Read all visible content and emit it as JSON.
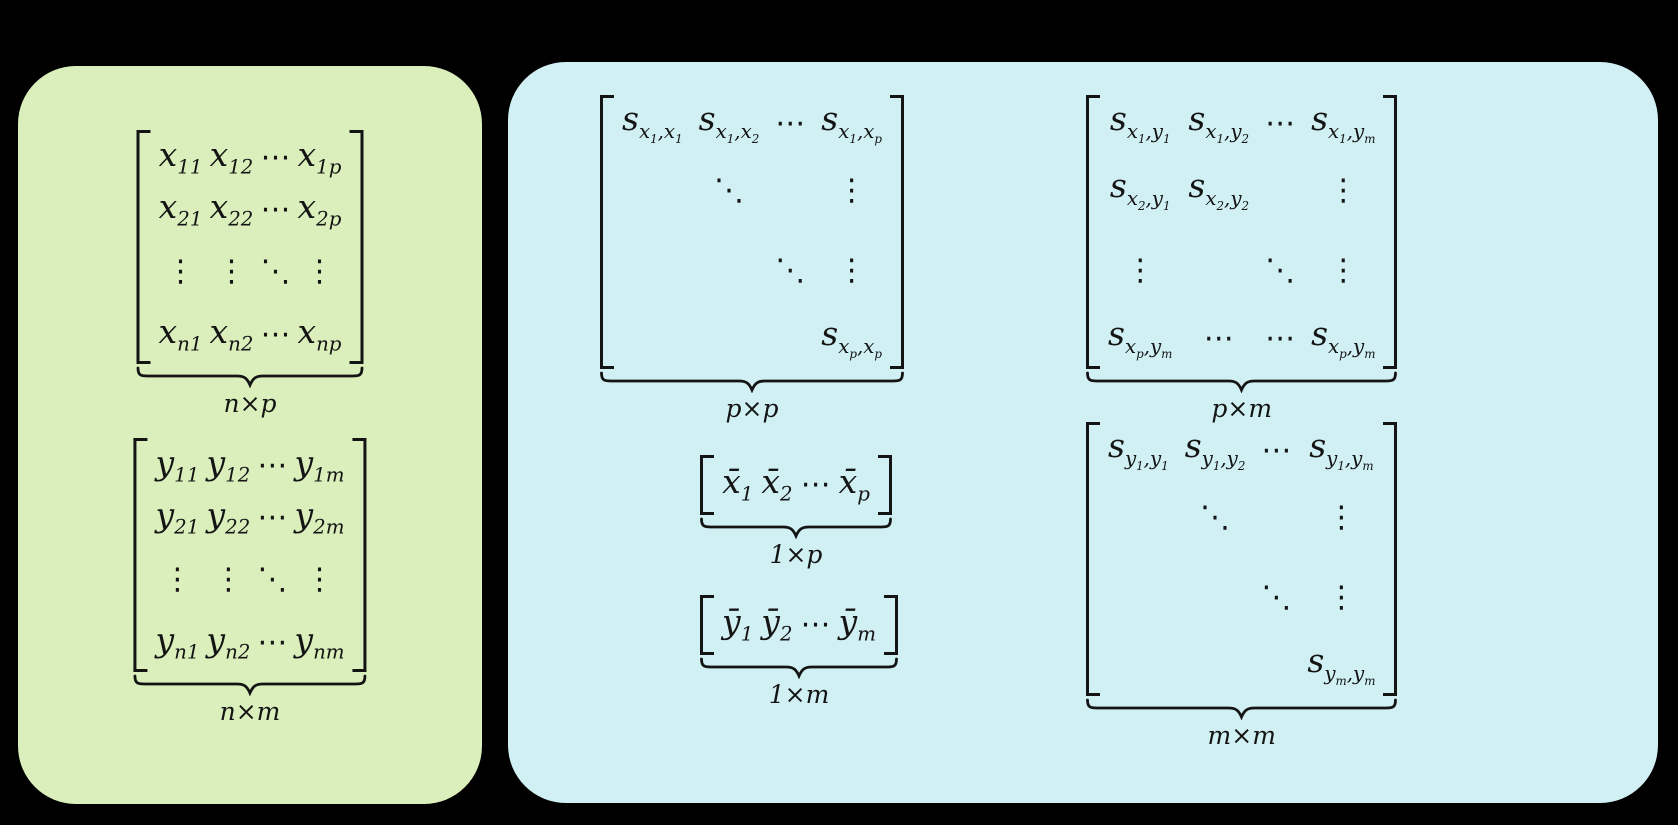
{
  "colors": {
    "background": "#000000",
    "data_panel_fill": "#daefbb",
    "stats_panel_fill": "#d1f0f4",
    "text": "#141414"
  },
  "green_panel": {
    "x_matrix": {
      "rows": [
        [
          "x_{11}",
          "x_{12}",
          "⋯",
          "x_{1p}"
        ],
        [
          "x_{21}",
          "x_{22}",
          "⋯",
          "x_{2p}"
        ],
        [
          "⋮",
          "⋮",
          "⋱",
          "⋮"
        ],
        [
          "x_{n1}",
          "x_{n2}",
          "⋯",
          "x_{np}"
        ]
      ],
      "dim_label": "n×p"
    },
    "y_matrix": {
      "rows": [
        [
          "y_{11}",
          "y_{12}",
          "⋯",
          "y_{1m}"
        ],
        [
          "y_{21}",
          "y_{22}",
          "⋯",
          "y_{2m}"
        ],
        [
          "⋮",
          "⋮",
          "⋱",
          "⋮"
        ],
        [
          "y_{n1}",
          "y_{n2}",
          "⋯",
          "y_{nm}"
        ]
      ],
      "dim_label": "n×m"
    }
  },
  "blue_panel": {
    "sxx_matrix": {
      "rows": [
        [
          "s_{x_1,x_1}",
          "s_{x_1,x_2}",
          "⋯",
          "s_{x_1,x_p}"
        ],
        [
          "",
          "⋱",
          "",
          "⋮"
        ],
        [
          "",
          "",
          "⋱",
          "⋮"
        ],
        [
          "",
          "",
          "",
          "s_{x_p,x_p}"
        ]
      ],
      "dim_label": "p×p"
    },
    "sxy_matrix": {
      "rows": [
        [
          "s_{x_1,y_1}",
          "s_{x_1,y_2}",
          "⋯",
          "s_{x_1,y_m}"
        ],
        [
          "s_{x_2,y_1}",
          "s_{x_2,y_2}",
          "",
          "⋮"
        ],
        [
          "⋮",
          "",
          "⋱",
          "⋮"
        ],
        [
          "s_{x_p,y_m}",
          "⋯",
          "⋯",
          "s_{x_p,y_m}"
        ]
      ],
      "dim_label": "p×m"
    },
    "xbar_vector": {
      "rows": [
        [
          "x̄_1",
          "x̄_2",
          "⋯",
          "x̄_p"
        ]
      ],
      "dim_label": "1×p"
    },
    "ybar_vector": {
      "rows": [
        [
          "ȳ_1",
          "ȳ_2",
          "⋯",
          "ȳ_m"
        ]
      ],
      "dim_label": "1×m"
    },
    "syy_matrix": {
      "rows": [
        [
          "s_{y_1,y_1}",
          "s_{y_1,y_2}",
          "⋯",
          "s_{y_1,y_m}"
        ],
        [
          "",
          "⋱",
          "",
          "⋮"
        ],
        [
          "",
          "",
          "⋱",
          "⋮"
        ],
        [
          "",
          "",
          "",
          "s_{y_m,y_m}"
        ]
      ],
      "dim_label": "m×m"
    }
  }
}
